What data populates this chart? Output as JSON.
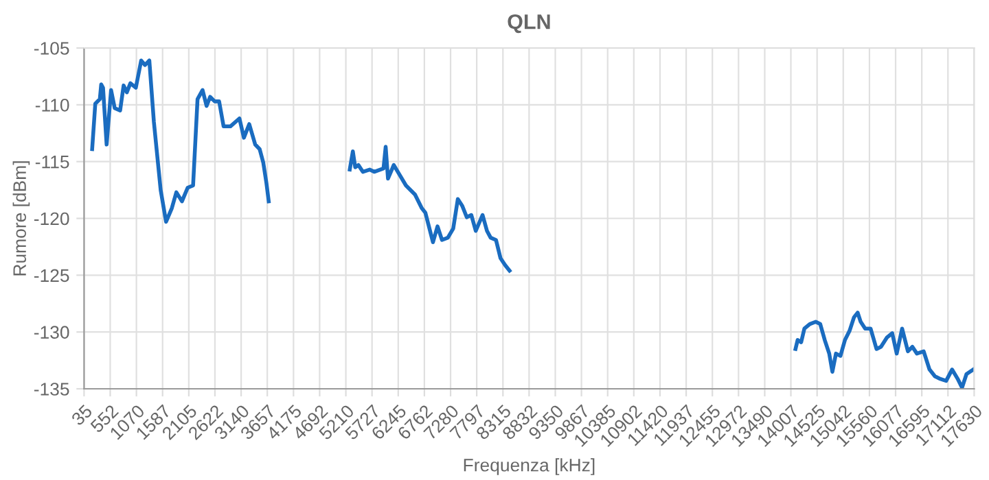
{
  "chart_data": {
    "type": "line",
    "title": "QLN",
    "xlabel": "Frequenza [kHz]",
    "ylabel": "Rumore [dBm]",
    "xlim": [
      35,
      17630
    ],
    "xticks": [
      35,
      552,
      1070,
      1587,
      2105,
      2622,
      3140,
      3657,
      4175,
      4692,
      5210,
      5727,
      6245,
      6762,
      7280,
      7797,
      8315,
      8832,
      9350,
      9867,
      10385,
      10902,
      11420,
      11937,
      12455,
      12972,
      13490,
      14007,
      14525,
      15042,
      15560,
      16077,
      16595,
      17112,
      17630
    ],
    "ylim": [
      -135,
      -105
    ],
    "yticks": [
      -135,
      -130,
      -125,
      -120,
      -115,
      -110,
      -105
    ],
    "grid": true,
    "line_style": "solid",
    "marker": "none",
    "series": [
      {
        "color": "#1a6cc0",
        "x": [
          195,
          257,
          347,
          374,
          410,
          481,
          569,
          641,
          748,
          817,
          880,
          951,
          1058,
          1164,
          1240,
          1325,
          1415,
          1549,
          1656,
          1770,
          1859,
          1970,
          2083,
          2190,
          2278,
          2377,
          2457,
          2527,
          2617,
          2705,
          2793,
          2927,
          3106,
          3194,
          3300,
          3418,
          3506,
          3578,
          3640,
          3685,
          4500,
          5287,
          5348,
          5395,
          5457,
          5546,
          5680,
          5770,
          5954,
          5997,
          6043,
          6157,
          6264,
          6398,
          6577,
          6710,
          6782,
          6932,
          7022,
          7110,
          7226,
          7332,
          7423,
          7511,
          7600,
          7690,
          7778,
          7912,
          8000,
          8072,
          8178,
          8267,
          8357,
          8446,
          11000,
          14098,
          14141,
          14210,
          14274,
          14381,
          14498,
          14587,
          14676,
          14765,
          14827,
          14898,
          14987,
          15076,
          15166,
          15255,
          15327,
          15387,
          15476,
          15583,
          15700,
          15788,
          15903,
          16010,
          16099,
          16206,
          16320,
          16409,
          16498,
          16632,
          16747,
          16854,
          16943,
          17076,
          17194,
          17301,
          17390,
          17479,
          17613
        ],
        "values": [
          -113.9,
          -109.9,
          -109.5,
          -108.2,
          -108.5,
          -113.5,
          -108.7,
          -110.3,
          -110.5,
          -108.3,
          -108.9,
          -108.1,
          -108.5,
          -106.1,
          -106.5,
          -106.1,
          -111.5,
          -117.5,
          -120.3,
          -119.1,
          -117.7,
          -118.5,
          -117.3,
          -117.1,
          -109.5,
          -108.7,
          -110.1,
          -109.3,
          -109.7,
          -109.7,
          -111.9,
          -111.9,
          -111.2,
          -112.9,
          -111.7,
          -113.5,
          -113.9,
          -115.1,
          -116.9,
          -118.5,
          null,
          -115.7,
          -114.1,
          -115.5,
          -115.3,
          -115.9,
          -115.7,
          -115.9,
          -115.6,
          -113.7,
          -116.5,
          -115.3,
          -116.1,
          -117.1,
          -117.9,
          -119.1,
          -119.5,
          -122.1,
          -120.7,
          -121.9,
          -121.7,
          -120.9,
          -118.3,
          -118.9,
          -119.9,
          -119.7,
          -121.1,
          -119.7,
          -121.1,
          -121.7,
          -121.9,
          -123.5,
          -124.1,
          -124.6,
          null,
          -131.5,
          -130.7,
          -130.9,
          -129.7,
          -129.3,
          -129.1,
          -129.3,
          -130.7,
          -131.9,
          -133.5,
          -131.9,
          -132.1,
          -130.7,
          -129.9,
          -128.7,
          -128.3,
          -129.1,
          -129.7,
          -129.7,
          -131.5,
          -131.3,
          -130.5,
          -130.1,
          -131.9,
          -129.7,
          -131.7,
          -131.3,
          -131.9,
          -131.7,
          -133.3,
          -133.9,
          -134.1,
          -134.3,
          -133.3,
          -134.1,
          -134.9,
          -133.7,
          -133.3
        ]
      }
    ]
  }
}
